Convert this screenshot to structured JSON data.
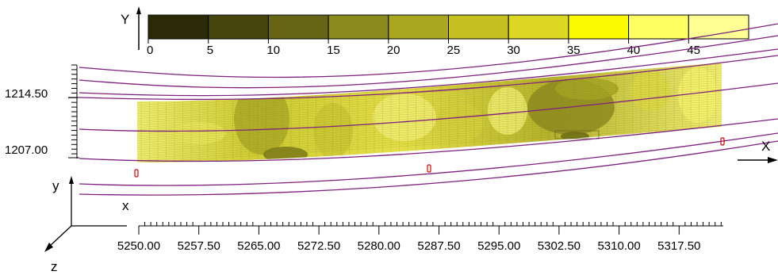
{
  "axes": {
    "Y_label": "Y",
    "X_label": "X",
    "y_label": "y",
    "x_label": "x",
    "z_label": "z"
  },
  "colorbar": {
    "ticks": [
      "0",
      "5",
      "10",
      "15",
      "20",
      "25",
      "30",
      "35",
      "40",
      "45"
    ],
    "colors": [
      "#2a2a07",
      "#46450e",
      "#666515",
      "#8b8a1c",
      "#aaa71f",
      "#c4c022",
      "#dcd824",
      "#fbfa00",
      "#ffff63",
      "#ffff94"
    ]
  },
  "vertical_scale": {
    "labels": [
      "1214.50",
      "1207.00"
    ]
  },
  "horizontal_scale": {
    "labels": [
      "5250.00",
      "5257.50",
      "5265.00",
      "5272.50",
      "5280.00",
      "5287.50",
      "5295.00",
      "5302.50",
      "5310.00",
      "5317.50"
    ]
  },
  "colors": {
    "contour_lines": "#7f1f7f",
    "markers": "#e00000"
  }
}
